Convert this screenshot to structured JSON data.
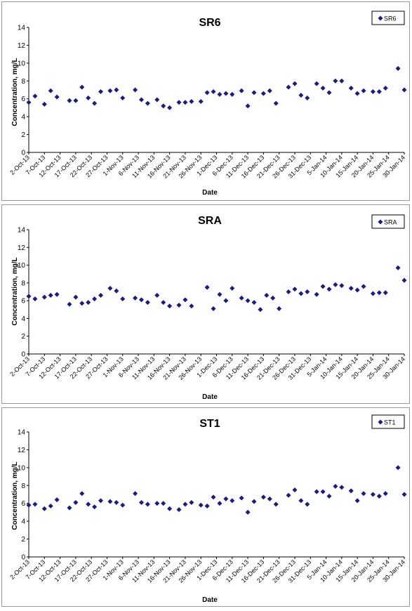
{
  "chart_data": [
    {
      "type": "scatter",
      "title": "SR6",
      "xlabel": "Date",
      "ylabel": "Concentration, mg/L",
      "ylim": [
        0,
        14
      ],
      "yticks": [
        0,
        2,
        4,
        6,
        8,
        10,
        12,
        14
      ],
      "xlim": [
        "2-Oct-13",
        "30-Jan-14"
      ],
      "xticks": [
        "2-Oct-13",
        "7-Oct-13",
        "12-Oct-13",
        "17-Oct-13",
        "22-Oct-13",
        "27-Oct-13",
        "1-Nov-13",
        "6-Nov-13",
        "11-Nov-13",
        "16-Nov-13",
        "21-Nov-13",
        "26-Nov-13",
        "1-Dec-13",
        "6-Dec-13",
        "11-Dec-13",
        "16-Dec-13",
        "21-Dec-13",
        "26-Dec-13",
        "31-Dec-13",
        "5-Jan-14",
        "10-Jan-14",
        "15-Jan-14",
        "20-Jan-14",
        "25-Jan-14",
        "30-Jan-14"
      ],
      "grid": false,
      "legend": "top-right",
      "marker": "diamond",
      "color": "#1a1a8c",
      "series": [
        {
          "name": "SR6",
          "x": [
            "2-Oct-13",
            "4-Oct-13",
            "7-Oct-13",
            "9-Oct-13",
            "11-Oct-13",
            "15-Oct-13",
            "17-Oct-13",
            "19-Oct-13",
            "21-Oct-13",
            "23-Oct-13",
            "25-Oct-13",
            "28-Oct-13",
            "30-Oct-13",
            "1-Nov-13",
            "5-Nov-13",
            "7-Nov-13",
            "9-Nov-13",
            "12-Nov-13",
            "14-Nov-13",
            "16-Nov-13",
            "19-Nov-13",
            "21-Nov-13",
            "23-Nov-13",
            "26-Nov-13",
            "28-Nov-13",
            "30-Nov-13",
            "2-Dec-13",
            "4-Dec-13",
            "6-Dec-13",
            "9-Dec-13",
            "11-Dec-13",
            "13-Dec-13",
            "16-Dec-13",
            "18-Dec-13",
            "20-Dec-13",
            "24-Dec-13",
            "26-Dec-13",
            "28-Dec-13",
            "30-Dec-13",
            "2-Jan-14",
            "4-Jan-14",
            "6-Jan-14",
            "8-Jan-14",
            "10-Jan-14",
            "13-Jan-14",
            "15-Jan-14",
            "17-Jan-14",
            "20-Jan-14",
            "22-Jan-14",
            "24-Jan-14",
            "28-Jan-14",
            "30-Jan-14"
          ],
          "y": [
            5.6,
            6.3,
            5.4,
            6.9,
            6.2,
            5.8,
            5.8,
            7.3,
            6.1,
            5.5,
            6.8,
            6.9,
            7.0,
            6.1,
            7.0,
            5.9,
            5.5,
            5.9,
            5.2,
            5.0,
            5.6,
            5.6,
            5.7,
            5.7,
            6.7,
            6.8,
            6.5,
            6.6,
            6.5,
            6.9,
            5.2,
            6.7,
            6.6,
            6.9,
            5.5,
            7.3,
            7.7,
            6.4,
            6.1,
            7.7,
            7.2,
            6.7,
            8.0,
            8.0,
            7.2,
            6.6,
            6.9,
            6.8,
            6.8,
            7.2,
            9.4,
            7.0
          ]
        }
      ]
    },
    {
      "type": "scatter",
      "title": "SRA",
      "xlabel": "Date",
      "ylabel": "Concentration, mg/L",
      "ylim": [
        0,
        14
      ],
      "yticks": [
        0,
        2,
        4,
        6,
        8,
        10,
        12,
        14
      ],
      "xlim": [
        "2-Oct-13",
        "30-Jan-14"
      ],
      "xticks": [
        "2-Oct-13",
        "7-Oct-13",
        "12-Oct-13",
        "17-Oct-13",
        "22-Oct-13",
        "27-Oct-13",
        "1-Nov-13",
        "6-Nov-13",
        "11-Nov-13",
        "16-Nov-13",
        "21-Nov-13",
        "26-Nov-13",
        "1-Dec-13",
        "6-Dec-13",
        "11-Dec-13",
        "16-Dec-13",
        "21-Dec-13",
        "26-Dec-13",
        "31-Dec-13",
        "5-Jan-14",
        "10-Jan-14",
        "15-Jan-14",
        "20-Jan-14",
        "25-Jan-14",
        "30-Jan-14"
      ],
      "grid": false,
      "legend": "top-right",
      "marker": "diamond",
      "color": "#1a1a8c",
      "series": [
        {
          "name": "SRA",
          "x": [
            "2-Oct-13",
            "4-Oct-13",
            "7-Oct-13",
            "9-Oct-13",
            "11-Oct-13",
            "15-Oct-13",
            "17-Oct-13",
            "19-Oct-13",
            "21-Oct-13",
            "23-Oct-13",
            "25-Oct-13",
            "28-Oct-13",
            "30-Oct-13",
            "1-Nov-13",
            "5-Nov-13",
            "7-Nov-13",
            "9-Nov-13",
            "12-Nov-13",
            "14-Nov-13",
            "16-Nov-13",
            "19-Nov-13",
            "21-Nov-13",
            "23-Nov-13",
            "28-Nov-13",
            "30-Nov-13",
            "2-Dec-13",
            "4-Dec-13",
            "6-Dec-13",
            "9-Dec-13",
            "11-Dec-13",
            "13-Dec-13",
            "15-Dec-13",
            "17-Dec-13",
            "19-Dec-13",
            "21-Dec-13",
            "24-Dec-13",
            "26-Dec-13",
            "28-Dec-13",
            "30-Dec-13",
            "2-Jan-14",
            "4-Jan-14",
            "6-Jan-14",
            "8-Jan-14",
            "10-Jan-14",
            "13-Jan-14",
            "15-Jan-14",
            "17-Jan-14",
            "20-Jan-14",
            "22-Jan-14",
            "24-Jan-14",
            "28-Jan-14",
            "30-Jan-14"
          ],
          "y": [
            6.5,
            6.2,
            6.4,
            6.6,
            6.7,
            5.6,
            6.4,
            5.7,
            5.8,
            6.2,
            6.6,
            7.4,
            7.1,
            6.2,
            6.3,
            6.1,
            5.8,
            6.6,
            5.8,
            5.4,
            5.5,
            6.1,
            5.4,
            7.5,
            5.1,
            6.7,
            6.0,
            7.4,
            6.3,
            6.0,
            5.8,
            5.0,
            6.6,
            6.3,
            5.1,
            7.0,
            7.3,
            6.8,
            7.0,
            6.7,
            7.6,
            7.3,
            7.8,
            7.7,
            7.4,
            7.2,
            7.6,
            6.8,
            6.9,
            6.9,
            9.7,
            8.3
          ]
        }
      ]
    },
    {
      "type": "scatter",
      "title": "ST1",
      "xlabel": "Date",
      "ylabel": "Concentration, mg/L",
      "ylim": [
        0,
        14
      ],
      "yticks": [
        0,
        2,
        4,
        6,
        8,
        10,
        12,
        14
      ],
      "xlim": [
        "2-Oct-13",
        "30-Jan-14"
      ],
      "xticks": [
        "2-Oct-13",
        "7-Oct-13",
        "12-Oct-13",
        "17-Oct-13",
        "22-Oct-13",
        "27-Oct-13",
        "1-Nov-13",
        "6-Nov-13",
        "11-Nov-13",
        "16-Nov-13",
        "21-Nov-13",
        "26-Nov-13",
        "1-Dec-13",
        "6-Dec-13",
        "11-Dec-13",
        "16-Dec-13",
        "21-Dec-13",
        "26-Dec-13",
        "31-Dec-13",
        "5-Jan-14",
        "10-Jan-14",
        "15-Jan-14",
        "20-Jan-14",
        "25-Jan-14",
        "30-Jan-14"
      ],
      "grid": false,
      "legend": "top-right",
      "marker": "diamond",
      "color": "#1a1a8c",
      "series": [
        {
          "name": "ST1",
          "x": [
            "2-Oct-13",
            "4-Oct-13",
            "7-Oct-13",
            "9-Oct-13",
            "11-Oct-13",
            "15-Oct-13",
            "17-Oct-13",
            "19-Oct-13",
            "21-Oct-13",
            "23-Oct-13",
            "25-Oct-13",
            "28-Oct-13",
            "30-Oct-13",
            "1-Nov-13",
            "5-Nov-13",
            "7-Nov-13",
            "9-Nov-13",
            "12-Nov-13",
            "14-Nov-13",
            "16-Nov-13",
            "19-Nov-13",
            "21-Nov-13",
            "23-Nov-13",
            "26-Nov-13",
            "28-Nov-13",
            "30-Nov-13",
            "2-Dec-13",
            "4-Dec-13",
            "6-Dec-13",
            "9-Dec-13",
            "11-Dec-13",
            "13-Dec-13",
            "16-Dec-13",
            "18-Dec-13",
            "20-Dec-13",
            "24-Dec-13",
            "26-Dec-13",
            "28-Dec-13",
            "30-Dec-13",
            "2-Jan-14",
            "4-Jan-14",
            "6-Jan-14",
            "8-Jan-14",
            "10-Jan-14",
            "13-Jan-14",
            "15-Jan-14",
            "17-Jan-14",
            "20-Jan-14",
            "22-Jan-14",
            "24-Jan-14",
            "28-Jan-14",
            "30-Jan-14"
          ],
          "y": [
            5.8,
            5.9,
            5.4,
            5.7,
            6.4,
            5.5,
            6.1,
            7.1,
            5.9,
            5.6,
            6.3,
            6.2,
            6.1,
            5.8,
            7.1,
            6.1,
            5.9,
            6.0,
            6.0,
            5.4,
            5.3,
            5.9,
            6.1,
            5.8,
            5.7,
            6.7,
            6.0,
            6.5,
            6.3,
            6.6,
            5.0,
            6.2,
            6.7,
            6.5,
            5.9,
            6.9,
            7.5,
            6.3,
            5.9,
            7.3,
            7.3,
            6.8,
            7.9,
            7.8,
            7.4,
            6.3,
            7.1,
            7.0,
            6.8,
            7.1,
            10.0,
            7.0
          ]
        }
      ]
    }
  ]
}
